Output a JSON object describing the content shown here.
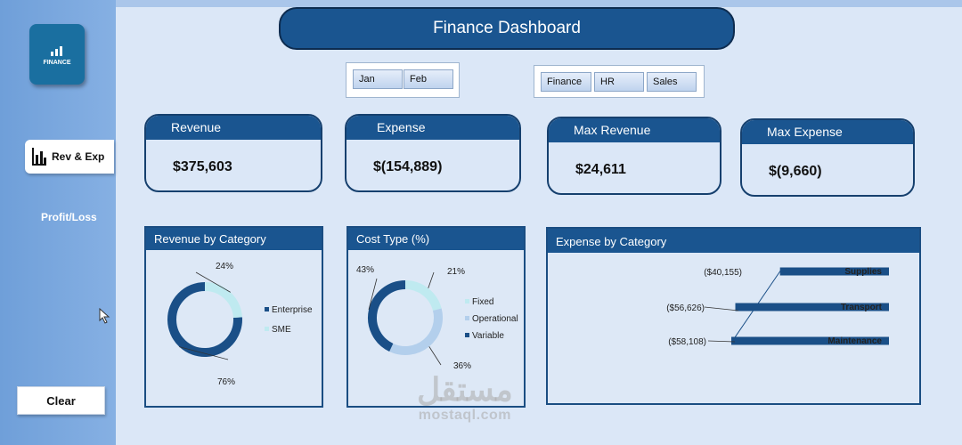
{
  "app": {
    "logo_text": "FINANCE",
    "title": "Finance Dashboard"
  },
  "sidebar": {
    "items": [
      {
        "label": "Rev & Exp",
        "active": true
      },
      {
        "label": "Profit/Loss",
        "active": false
      }
    ],
    "clear_label": "Clear"
  },
  "month_slicer": [
    "Jan",
    "Feb"
  ],
  "department_slicer": [
    "Finance",
    "HR",
    "Sales"
  ],
  "kpis": [
    {
      "label": "Revenue",
      "value": "$375,603"
    },
    {
      "label": "Expense",
      "value": "$(154,889)"
    },
    {
      "label": "Max Revenue",
      "value": "$24,611"
    },
    {
      "label": "Max Expense",
      "value": "$(9,660)"
    }
  ],
  "colors": {
    "navy": "#1a4f87",
    "light_teal": "#bfeaf0",
    "light_blue": "#b3cfec",
    "header": "#1a5590"
  },
  "chart_data": [
    {
      "type": "pie",
      "title": "Revenue by Category",
      "categories": [
        "Enterprise",
        "SME"
      ],
      "values": [
        76,
        24
      ],
      "labels": [
        "76%",
        "24%"
      ],
      "legend": "right"
    },
    {
      "type": "pie",
      "title": "Cost Type (%)",
      "categories": [
        "Fixed",
        "Operational",
        "Variable"
      ],
      "values": [
        21,
        36,
        43
      ],
      "labels": [
        "21%",
        "36%",
        "43%"
      ],
      "legend": "right"
    },
    {
      "type": "bar",
      "title": "Expense by Category",
      "categories": [
        "Supplies",
        "Transport",
        "Maintenance"
      ],
      "values": [
        -40155,
        -56626,
        -58108
      ],
      "labels": [
        "($40,155)",
        "($56,626)",
        "($58,108)"
      ]
    }
  ],
  "watermark": {
    "arabic": "مستقل",
    "latin": "mostaql.com"
  }
}
